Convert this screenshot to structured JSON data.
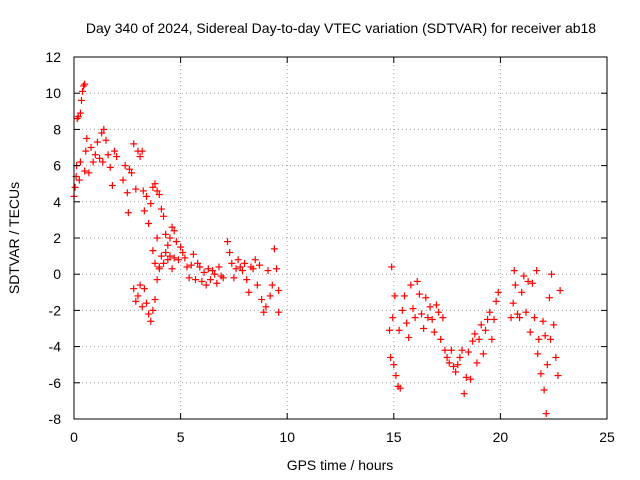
{
  "chart_data": {
    "type": "scatter",
    "title": "Day 340 of 2024, Sidereal Day-to-day VTEC variation (SDTVAR) for receiver ab18",
    "xlabel": "GPS time / hours",
    "ylabel": "SDTVAR / TECUs",
    "xlim": [
      0,
      25
    ],
    "ylim": [
      -8,
      12
    ],
    "xticks": [
      0,
      5,
      10,
      15,
      20,
      25
    ],
    "yticks": [
      -8,
      -6,
      -4,
      -2,
      0,
      2,
      4,
      6,
      8,
      10,
      12
    ],
    "grid": true,
    "marker": "+",
    "colors": {
      "series": "#ff0000",
      "grid": "#a0a0a0",
      "axis": "#000000"
    },
    "series": [
      {
        "name": "SDTVAR",
        "points": [
          [
            0.0,
            4.3
          ],
          [
            0.05,
            4.8
          ],
          [
            0.1,
            5.4
          ],
          [
            0.12,
            6.0
          ],
          [
            0.15,
            8.6
          ],
          [
            0.2,
            8.7
          ],
          [
            0.25,
            5.2
          ],
          [
            0.3,
            6.2
          ],
          [
            0.3,
            8.9
          ],
          [
            0.35,
            9.6
          ],
          [
            0.4,
            10.1
          ],
          [
            0.45,
            10.4
          ],
          [
            0.5,
            10.5
          ],
          [
            0.5,
            5.7
          ],
          [
            0.55,
            6.8
          ],
          [
            0.6,
            7.5
          ],
          [
            0.7,
            5.6
          ],
          [
            0.8,
            7.0
          ],
          [
            0.9,
            6.2
          ],
          [
            1.0,
            6.6
          ],
          [
            1.1,
            7.3
          ],
          [
            1.2,
            6.4
          ],
          [
            1.3,
            7.8
          ],
          [
            1.35,
            6.2
          ],
          [
            1.4,
            8.0
          ],
          [
            1.5,
            7.4
          ],
          [
            1.6,
            6.6
          ],
          [
            1.7,
            5.9
          ],
          [
            1.8,
            4.9
          ],
          [
            1.9,
            6.8
          ],
          [
            2.0,
            6.5
          ],
          [
            2.3,
            5.2
          ],
          [
            2.4,
            6.0
          ],
          [
            2.5,
            4.5
          ],
          [
            2.55,
            3.4
          ],
          [
            2.6,
            5.8
          ],
          [
            2.7,
            5.6
          ],
          [
            2.8,
            7.2
          ],
          [
            2.9,
            4.7
          ],
          [
            3.0,
            6.8
          ],
          [
            3.1,
            6.5
          ],
          [
            3.2,
            6.8
          ],
          [
            3.25,
            4.6
          ],
          [
            3.3,
            3.5
          ],
          [
            3.4,
            4.3
          ],
          [
            3.5,
            2.8
          ],
          [
            3.6,
            3.9
          ],
          [
            3.7,
            4.8
          ],
          [
            3.8,
            5.0
          ],
          [
            3.9,
            4.6
          ],
          [
            4.0,
            4.4
          ],
          [
            4.1,
            3.6
          ],
          [
            4.2,
            3.2
          ],
          [
            4.3,
            2.2
          ],
          [
            4.4,
            1.6
          ],
          [
            4.5,
            2.0
          ],
          [
            4.6,
            2.6
          ],
          [
            4.7,
            2.4
          ],
          [
            4.8,
            1.8
          ],
          [
            4.9,
            0.8
          ],
          [
            5.0,
            1.5
          ],
          [
            3.7,
            1.3
          ],
          [
            3.8,
            0.6
          ],
          [
            3.9,
            2.0
          ],
          [
            4.0,
            0.4
          ],
          [
            4.1,
            1.0
          ],
          [
            4.2,
            0.6
          ],
          [
            4.3,
            1.2
          ],
          [
            4.4,
            0.8
          ],
          [
            4.5,
            1.0
          ],
          [
            4.6,
            0.3
          ],
          [
            4.7,
            0.9
          ],
          [
            2.8,
            -0.8
          ],
          [
            2.9,
            -1.5
          ],
          [
            3.0,
            -1.2
          ],
          [
            3.1,
            -0.6
          ],
          [
            3.2,
            -1.8
          ],
          [
            3.3,
            -0.8
          ],
          [
            3.4,
            -1.6
          ],
          [
            3.5,
            -2.2
          ],
          [
            3.6,
            -2.6
          ],
          [
            3.7,
            -2.0
          ],
          [
            3.8,
            -1.4
          ],
          [
            3.9,
            -0.3
          ],
          [
            4.0,
            0.3
          ],
          [
            5.1,
            1.2
          ],
          [
            5.2,
            0.9
          ],
          [
            5.3,
            0.4
          ],
          [
            5.4,
            -0.2
          ],
          [
            5.5,
            0.5
          ],
          [
            5.6,
            1.1
          ],
          [
            5.7,
            -0.3
          ],
          [
            5.8,
            0.6
          ],
          [
            5.9,
            0.4
          ],
          [
            6.0,
            -0.4
          ],
          [
            6.1,
            0.1
          ],
          [
            6.2,
            -0.6
          ],
          [
            6.3,
            0.3
          ],
          [
            6.4,
            -0.3
          ],
          [
            6.5,
            0.2
          ],
          [
            6.6,
            0.0
          ],
          [
            6.7,
            -0.5
          ],
          [
            6.8,
            0.4
          ],
          [
            6.9,
            -0.1
          ],
          [
            7.0,
            -0.2
          ],
          [
            7.2,
            1.8
          ],
          [
            7.3,
            1.2
          ],
          [
            7.4,
            0.6
          ],
          [
            7.5,
            -0.2
          ],
          [
            7.6,
            0.3
          ],
          [
            7.7,
            0.8
          ],
          [
            7.8,
            0.4
          ],
          [
            7.9,
            0.2
          ],
          [
            8.0,
            0.6
          ],
          [
            8.1,
            -0.3
          ],
          [
            8.2,
            -1.0
          ],
          [
            8.3,
            0.4
          ],
          [
            8.4,
            0.3
          ],
          [
            8.5,
            0.8
          ],
          [
            8.6,
            -0.6
          ],
          [
            8.7,
            0.5
          ],
          [
            8.8,
            -1.4
          ],
          [
            8.9,
            -2.1
          ],
          [
            9.0,
            -1.8
          ],
          [
            9.1,
            0.2
          ],
          [
            9.2,
            -1.2
          ],
          [
            9.3,
            -0.6
          ],
          [
            9.4,
            1.4
          ],
          [
            9.5,
            0.3
          ],
          [
            9.6,
            -0.9
          ],
          [
            9.6,
            -2.1
          ],
          [
            14.8,
            -3.1
          ],
          [
            14.85,
            -4.6
          ],
          [
            14.9,
            0.4
          ],
          [
            14.95,
            -2.4
          ],
          [
            15.0,
            -5.0
          ],
          [
            15.05,
            -1.2
          ],
          [
            15.1,
            -5.6
          ],
          [
            15.2,
            -6.2
          ],
          [
            15.25,
            -3.1
          ],
          [
            15.3,
            -6.3
          ],
          [
            15.4,
            -2.0
          ],
          [
            15.5,
            -1.2
          ],
          [
            15.6,
            -2.7
          ],
          [
            15.7,
            -3.5
          ],
          [
            15.8,
            -0.6
          ],
          [
            15.9,
            -1.9
          ],
          [
            16.0,
            -2.4
          ],
          [
            16.1,
            -0.4
          ],
          [
            16.2,
            -1.1
          ],
          [
            16.3,
            -2.2
          ],
          [
            16.4,
            -3.0
          ],
          [
            16.5,
            -1.3
          ],
          [
            16.6,
            -2.4
          ],
          [
            16.7,
            -1.8
          ],
          [
            16.8,
            -2.5
          ],
          [
            16.9,
            -3.2
          ],
          [
            17.0,
            -1.7
          ],
          [
            17.1,
            -2.1
          ],
          [
            17.2,
            -3.6
          ],
          [
            17.3,
            -2.4
          ],
          [
            17.4,
            -4.2
          ],
          [
            17.5,
            -4.6
          ],
          [
            17.6,
            -4.9
          ],
          [
            17.7,
            -4.2
          ],
          [
            17.8,
            -5.1
          ],
          [
            17.9,
            -5.4
          ],
          [
            18.0,
            -5.0
          ],
          [
            18.1,
            -4.6
          ],
          [
            18.2,
            -4.2
          ],
          [
            18.3,
            -6.6
          ],
          [
            18.4,
            -5.7
          ],
          [
            18.5,
            -4.3
          ],
          [
            18.6,
            -5.8
          ],
          [
            18.7,
            -3.7
          ],
          [
            18.8,
            -3.3
          ],
          [
            18.9,
            -4.9
          ],
          [
            19.0,
            -3.6
          ],
          [
            19.1,
            -2.8
          ],
          [
            19.2,
            -4.4
          ],
          [
            19.3,
            -3.1
          ],
          [
            19.4,
            -2.5
          ],
          [
            19.5,
            -2.1
          ],
          [
            19.6,
            -3.6
          ],
          [
            19.7,
            -2.5
          ],
          [
            19.8,
            -1.5
          ],
          [
            19.9,
            -1.0
          ],
          [
            20.5,
            -2.4
          ],
          [
            20.6,
            -1.6
          ],
          [
            20.65,
            0.2
          ],
          [
            20.7,
            -0.6
          ],
          [
            20.8,
            -2.2
          ],
          [
            20.9,
            -2.4
          ],
          [
            21.0,
            -1.0
          ],
          [
            21.1,
            -0.1
          ],
          [
            21.2,
            -2.1
          ],
          [
            21.3,
            -0.4
          ],
          [
            21.4,
            -3.2
          ],
          [
            21.5,
            -0.5
          ],
          [
            21.6,
            -2.4
          ],
          [
            21.7,
            0.2
          ],
          [
            21.75,
            -4.4
          ],
          [
            21.8,
            -3.6
          ],
          [
            21.9,
            -5.5
          ],
          [
            22.0,
            -2.6
          ],
          [
            22.05,
            -6.4
          ],
          [
            22.1,
            -3.4
          ],
          [
            22.15,
            -7.7
          ],
          [
            22.2,
            -5.0
          ],
          [
            22.3,
            -1.3
          ],
          [
            22.35,
            -3.6
          ],
          [
            22.4,
            0.0
          ],
          [
            22.5,
            -2.8
          ],
          [
            22.6,
            -4.6
          ],
          [
            22.7,
            -5.6
          ],
          [
            22.8,
            -0.9
          ]
        ]
      }
    ]
  }
}
